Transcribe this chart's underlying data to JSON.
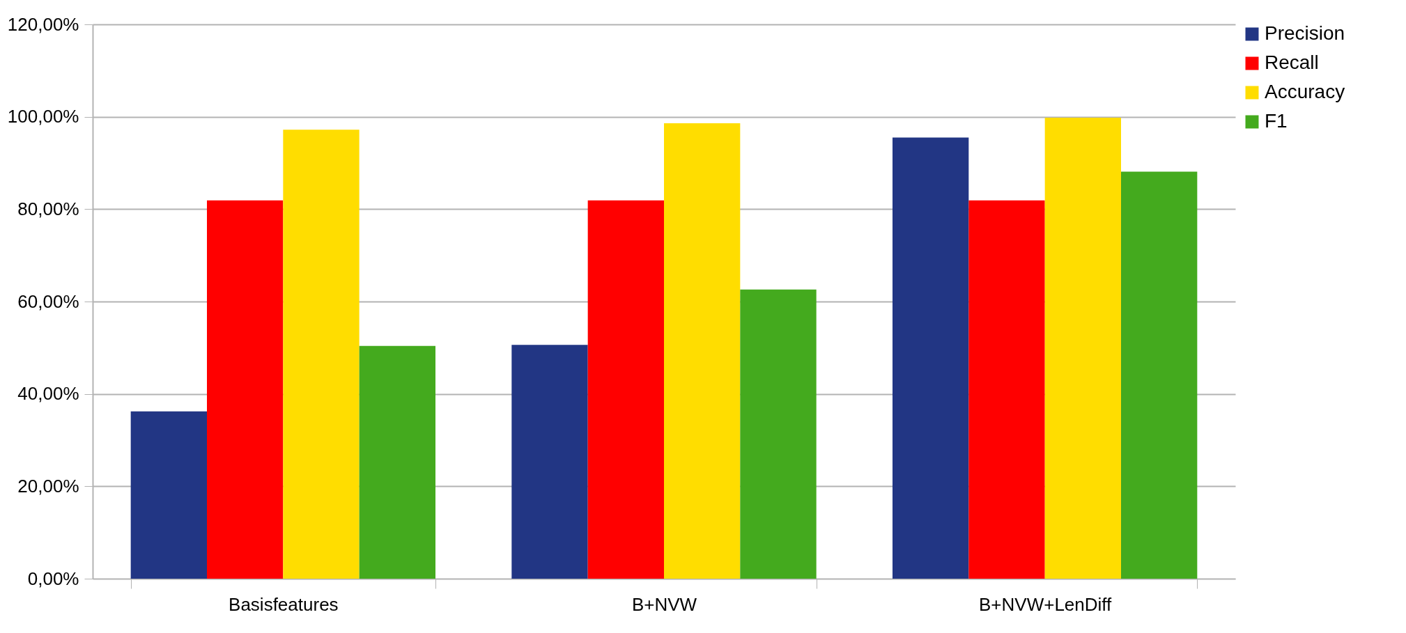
{
  "chart_data": {
    "type": "bar",
    "categories": [
      "Basisfeatures",
      "B+NVW",
      "B+NVW+LenDiff"
    ],
    "series": [
      {
        "name": "Precision",
        "color": "#223684",
        "values": [
          36.2,
          50.6,
          95.5
        ]
      },
      {
        "name": "Recall",
        "color": "#ff0000",
        "values": [
          81.9,
          81.9,
          81.9
        ]
      },
      {
        "name": "Accuracy",
        "color": "#ffdd00",
        "values": [
          97.2,
          98.6,
          99.8
        ]
      },
      {
        "name": "F1",
        "color": "#44aa1e",
        "values": [
          50.4,
          62.6,
          88.1
        ]
      }
    ],
    "ylim": [
      0,
      120
    ],
    "yticks": [
      {
        "value": 0,
        "label": "0,00%"
      },
      {
        "value": 20,
        "label": "20,00%"
      },
      {
        "value": 40,
        "label": "40,00%"
      },
      {
        "value": 60,
        "label": "60,00%"
      },
      {
        "value": 80,
        "label": "80,00%"
      },
      {
        "value": 100,
        "label": "100,00%"
      },
      {
        "value": 120,
        "label": "120,00%"
      }
    ],
    "grid": "y",
    "legend": "right"
  }
}
